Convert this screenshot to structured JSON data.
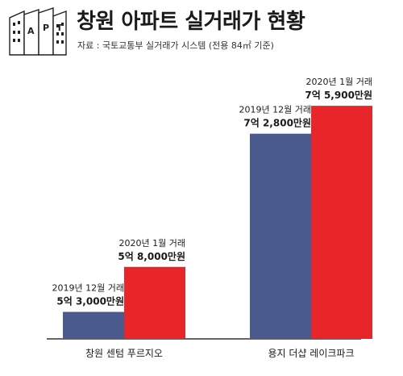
{
  "header": {
    "title": "창원 아파트 실거래가 현황",
    "source": "자료 : 국토교통부 실거래가 시스템 (전용 84㎡ 기준)",
    "logo_letters": [
      "A",
      "P",
      "T"
    ]
  },
  "colors": {
    "bar_2019": "#4a5a8c",
    "bar_2020": "#e8262a",
    "axis": "#333333"
  },
  "chart_data": {
    "type": "bar",
    "title": "창원 아파트 실거래가 현황",
    "unit": "만원",
    "categories": [
      "창원 센텀 푸르지오",
      "용지 더샵 레이크파크"
    ],
    "ylim": [
      0,
      80000
    ],
    "series": [
      {
        "key": "2019",
        "values": [
          53000,
          72800
        ],
        "date_labels": [
          "2019년 12월 거래",
          "2019년 12월 거래"
        ],
        "price_labels": [
          "5억 3,000만원",
          "7억 2,800만원"
        ]
      },
      {
        "key": "2020",
        "values": [
          58000,
          75900
        ],
        "date_labels": [
          "2020년 1월 거래",
          "2020년 1월 거래"
        ],
        "price_labels": [
          "5억 8,000만원",
          "7억 5,900만원"
        ]
      }
    ]
  }
}
